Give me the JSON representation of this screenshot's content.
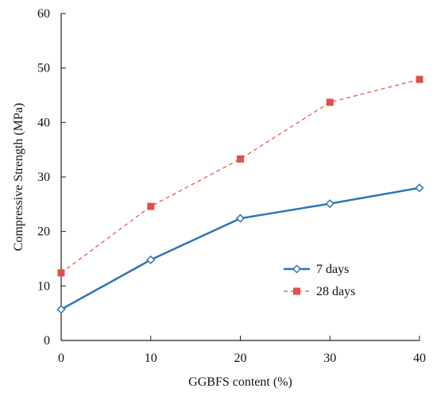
{
  "chart_data": {
    "type": "line",
    "title": "",
    "xlabel": "GGBFS content (%)",
    "ylabel": "Compressive Strength  (MPa)",
    "xlim": [
      0,
      40
    ],
    "ylim": [
      0,
      60
    ],
    "x_ticks": [
      0,
      10,
      20,
      30,
      40
    ],
    "y_ticks": [
      0,
      10,
      20,
      30,
      40,
      50,
      60
    ],
    "grid": false,
    "legend_position": "lower-right",
    "series": [
      {
        "name": "7 days",
        "color": "#2e75b6",
        "line_style": "solid",
        "marker": "diamond-open",
        "x": [
          0,
          10,
          20,
          30,
          40
        ],
        "y": [
          5.7,
          14.8,
          22.4,
          25.1,
          28.0
        ]
      },
      {
        "name": "28 days",
        "color": "#e0504a",
        "line_style": "dashed",
        "marker": "square-filled",
        "x": [
          0,
          10,
          20,
          30,
          40
        ],
        "y": [
          12.4,
          24.6,
          33.3,
          43.7,
          47.9
        ]
      }
    ]
  }
}
